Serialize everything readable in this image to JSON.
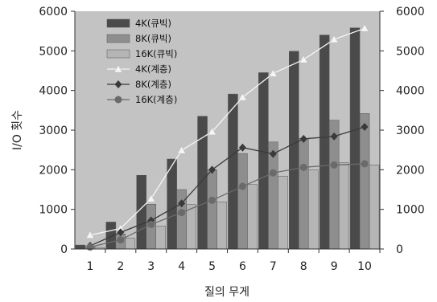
{
  "chart_data": {
    "type": "bar",
    "title": "",
    "xlabel": "질의 무게",
    "ylabel": "I/O 횟수",
    "categories": [
      "1",
      "2",
      "3",
      "4",
      "5",
      "6",
      "7",
      "8",
      "9",
      "10"
    ],
    "ylim": [
      0,
      6000
    ],
    "yticks": [
      0,
      1000,
      2000,
      3000,
      4000,
      5000,
      6000
    ],
    "secondary_yticks": [
      0,
      1000,
      2000,
      3000,
      4000,
      5000,
      6000
    ],
    "grid": false,
    "legend_position": "top-left",
    "background_color": "#c3c3c3",
    "series": [
      {
        "name": "4K(큐빅)",
        "kind": "bar",
        "color": "#4a4a4a",
        "values": [
          100,
          680,
          1860,
          2270,
          3350,
          3910,
          4450,
          4990,
          5400,
          5580
        ]
      },
      {
        "name": "8K(큐빅)",
        "kind": "bar",
        "color": "#8e8e8e",
        "values": [
          60,
          380,
          1130,
          1500,
          2000,
          2410,
          2700,
          2790,
          3250,
          3420
        ]
      },
      {
        "name": "16K(큐빅)",
        "kind": "bar",
        "color": "#b5b5b5",
        "values": [
          40,
          270,
          580,
          1120,
          1190,
          1630,
          1840,
          2000,
          2180,
          2120
        ]
      },
      {
        "name": "4K(계층)",
        "kind": "line",
        "marker": "triangle",
        "color": "#f5f5f5",
        "values": [
          350,
          520,
          1270,
          2490,
          2960,
          3830,
          4430,
          4780,
          5290,
          5570
        ]
      },
      {
        "name": "8K(계층)",
        "kind": "line",
        "marker": "diamond",
        "color": "#3a3a3a",
        "values": [
          80,
          420,
          720,
          1150,
          2000,
          2560,
          2400,
          2780,
          2840,
          3080
        ]
      },
      {
        "name": "16K(계층)",
        "kind": "line",
        "marker": "circle",
        "color": "#6a6a6a",
        "values": [
          50,
          230,
          620,
          920,
          1230,
          1580,
          1920,
          2060,
          2120,
          2150
        ]
      }
    ]
  }
}
